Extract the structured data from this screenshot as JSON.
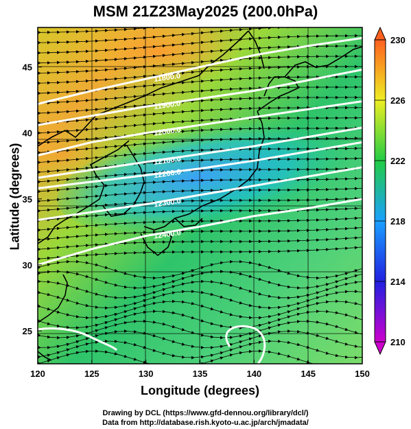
{
  "title": "MSM 21Z23May2025 (200.0hPa)",
  "x_axis": {
    "label": "Longitude (degrees)",
    "min": 120,
    "max": 150,
    "ticks": [
      "120",
      "125",
      "130",
      "135",
      "140",
      "145",
      "150"
    ]
  },
  "y_axis": {
    "label": "Latitude  (degrees)",
    "min": 22.5,
    "max": 48,
    "ticks": [
      "25",
      "30",
      "35",
      "40",
      "45"
    ]
  },
  "colorbar": {
    "min": 210,
    "max": 230,
    "ticks": [
      "210",
      "214",
      "218",
      "222",
      "226",
      "230"
    ],
    "colors": [
      "#cc00cc",
      "#2020e0",
      "#1aa0ff",
      "#22cc44",
      "#eeee22",
      "#ff6020"
    ]
  },
  "height_contours": {
    "color": "#ffffff",
    "levels": [
      {
        "label": "11800.0",
        "lat_at_lon": [
          [
            120,
            42.2
          ],
          [
            125,
            43.2
          ],
          [
            130,
            44.1
          ],
          [
            135,
            45.0
          ],
          [
            140,
            45.9
          ],
          [
            145,
            46.6
          ],
          [
            150,
            47.2
          ]
        ]
      },
      {
        "label": "11900.0",
        "lat_at_lon": [
          [
            120,
            40.6
          ],
          [
            125,
            41.3
          ],
          [
            130,
            42.0
          ],
          [
            135,
            42.6
          ],
          [
            140,
            43.2
          ],
          [
            145,
            44.0
          ],
          [
            150,
            44.8
          ]
        ]
      },
      {
        "label": "12000.0",
        "lat_at_lon": [
          [
            120,
            38.3
          ],
          [
            125,
            39.3
          ],
          [
            130,
            40.0
          ],
          [
            135,
            40.6
          ],
          [
            140,
            41.2
          ],
          [
            145,
            41.8
          ],
          [
            150,
            42.4
          ]
        ]
      },
      {
        "label": "12100.0",
        "lat_at_lon": [
          [
            120,
            36.6
          ],
          [
            125,
            37.2
          ],
          [
            130,
            37.8
          ],
          [
            135,
            38.4
          ],
          [
            140,
            39.0
          ],
          [
            145,
            39.7
          ],
          [
            150,
            40.4
          ]
        ]
      },
      {
        "label": "12200.0",
        "lat_at_lon": [
          [
            120,
            35.8
          ],
          [
            125,
            36.3
          ],
          [
            130,
            36.8
          ],
          [
            135,
            37.3
          ],
          [
            140,
            37.9
          ],
          [
            145,
            38.6
          ],
          [
            150,
            39.3
          ]
        ]
      },
      {
        "label": "12300.0",
        "lat_at_lon": [
          [
            120,
            33.4
          ],
          [
            125,
            34.0
          ],
          [
            130,
            34.6
          ],
          [
            135,
            35.3
          ],
          [
            140,
            36.0
          ],
          [
            145,
            36.7
          ],
          [
            150,
            37.4
          ]
        ]
      },
      {
        "label": "12400.0",
        "lat_at_lon": [
          [
            120,
            30.0
          ],
          [
            125,
            31.2
          ],
          [
            130,
            32.2
          ],
          [
            135,
            32.9
          ],
          [
            140,
            33.7
          ],
          [
            145,
            34.3
          ],
          [
            150,
            35.0
          ]
        ]
      }
    ]
  },
  "credits": {
    "line1": "Drawing by DCL (https://www.gfd-dennou.org/library/dcl/)",
    "line2": "Data from http://database.rish.kyoto-u.ac.jp/arch/jmadata/"
  }
}
